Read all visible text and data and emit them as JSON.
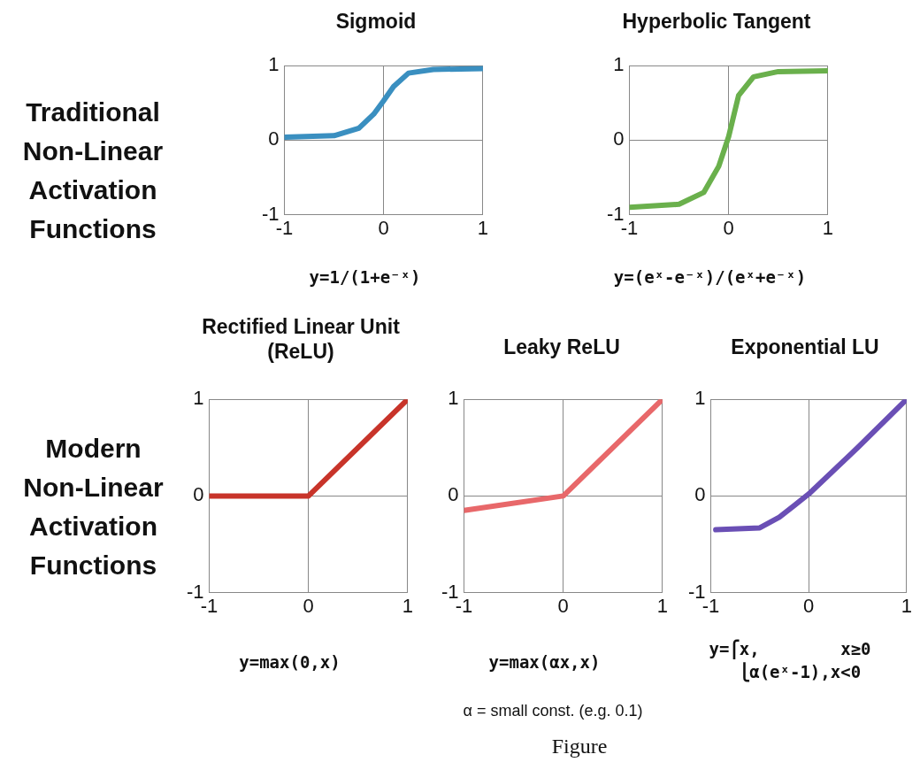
{
  "chart_data": [
    {
      "type": "line",
      "title": "Sigmoid",
      "xlabel": "y=1/(1+e⁻ˣ)",
      "annotations": [
        "Traditional Non-Linear Activation Functions"
      ],
      "xlim": [
        -1,
        1
      ],
      "xticks": [
        -1,
        0,
        1
      ],
      "ylim": [
        -1,
        1
      ],
      "yticks": [
        -1,
        0,
        1
      ],
      "grid": true,
      "legend": false,
      "marker": "none",
      "line_style": "solid",
      "series": [
        {
          "color": "#3a8fc0",
          "x": [
            -1,
            -0.5,
            -0.25,
            -0.1,
            0,
            0.1,
            0.25,
            0.5,
            1
          ],
          "values": [
            0.04,
            0.06,
            0.16,
            0.35,
            0.53,
            0.72,
            0.9,
            0.95,
            0.96
          ]
        }
      ]
    },
    {
      "type": "line",
      "title": "Hyperbolic Tangent",
      "xlabel": "y=(eˣ-e⁻ˣ)/(eˣ+e⁻ˣ)",
      "xlim": [
        -1,
        1
      ],
      "xticks": [
        -1,
        0,
        1
      ],
      "ylim": [
        -1,
        1
      ],
      "yticks": [
        -1,
        0,
        1
      ],
      "grid": true,
      "legend": false,
      "marker": "none",
      "line_style": "solid",
      "series": [
        {
          "color": "#6ab04c",
          "x": [
            -1,
            -0.5,
            -0.25,
            -0.1,
            0,
            0.1,
            0.25,
            0.5,
            1
          ],
          "values": [
            -0.9,
            -0.86,
            -0.7,
            -0.35,
            0.05,
            0.6,
            0.85,
            0.92,
            0.93
          ]
        }
      ]
    },
    {
      "type": "line",
      "title": "Rectified Linear Unit (ReLU)",
      "xlabel": "y=max(0,x)",
      "annotations": [
        "Modern Non-Linear Activation Functions"
      ],
      "xlim": [
        -1,
        1
      ],
      "xticks": [
        -1,
        0,
        1
      ],
      "ylim": [
        -1,
        1
      ],
      "yticks": [
        -1,
        0,
        1
      ],
      "grid": true,
      "legend": false,
      "marker": "none",
      "line_style": "solid",
      "series": [
        {
          "color": "#c8342a",
          "x": [
            -1,
            0,
            1
          ],
          "values": [
            0,
            0,
            1
          ]
        }
      ]
    },
    {
      "type": "line",
      "title": "Leaky ReLU",
      "xlabel": "y=max(αx,x)",
      "annotations": [
        "α = small const. (e.g. 0.1)",
        "Figure"
      ],
      "xlim": [
        -1,
        1
      ],
      "xticks": [
        -1,
        0,
        1
      ],
      "ylim": [
        -1,
        1
      ],
      "yticks": [
        -1,
        0,
        1
      ],
      "grid": true,
      "legend": false,
      "marker": "none",
      "line_style": "solid",
      "series": [
        {
          "color": "#e8686a",
          "x": [
            -1,
            0,
            1
          ],
          "values": [
            -0.15,
            0,
            1
          ]
        }
      ]
    },
    {
      "type": "line",
      "title": "Exponential LU",
      "xlabel": "y=⎧x,        x≥0\n  ⎩α(eˣ-1),x<0",
      "xlim": [
        -1,
        1
      ],
      "xticks": [
        -1,
        0,
        1
      ],
      "ylim": [
        -1,
        1
      ],
      "yticks": [
        -1,
        0,
        1
      ],
      "grid": true,
      "legend": false,
      "marker": "none",
      "line_style": "solid",
      "series": [
        {
          "color": "#6a4fb5",
          "x": [
            -0.95,
            -0.5,
            -0.3,
            -0.15,
            0,
            0.5,
            1
          ],
          "values": [
            -0.35,
            -0.33,
            -0.22,
            -0.1,
            0.02,
            0.5,
            1
          ]
        }
      ]
    }
  ]
}
